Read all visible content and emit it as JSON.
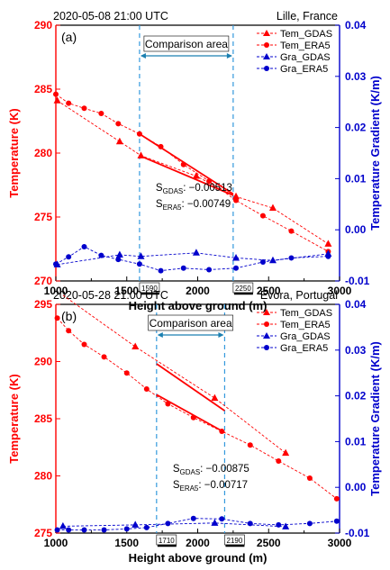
{
  "chart_data": [
    {
      "panel": "(a)",
      "type": "line",
      "timestamp": "2020-05-08  21:00 UTC",
      "location": "Lille, France",
      "xlabel": "Height above ground (m)",
      "ylabel_left": "Temperature (K)",
      "ylabel_right": "Temperature Gradient (K/m)",
      "xlim": [
        1000,
        3000
      ],
      "ylim_left": [
        270,
        290
      ],
      "ylim_right": [
        -0.01,
        0.04
      ],
      "xticks": [
        "1000",
        "1500",
        "2000",
        "2500",
        "3000"
      ],
      "yticks_left": [
        "270",
        "275",
        "280",
        "285",
        "290"
      ],
      "yticks_right": [
        "-0.01",
        "0.00",
        "0.01",
        "0.02",
        "0.03",
        "0.04"
      ],
      "comparison_label": "Comparison area",
      "comparison_range": [
        1590,
        2250
      ],
      "comparison_range_labels": [
        "1590",
        "2250"
      ],
      "slope_texts": [
        "S",
        "GDAS",
        ": −0.00513",
        "S",
        "ERA5",
        ": −0.00749"
      ],
      "legend": [
        "Tem_GDAS",
        "Tem_ERA5",
        "Gra_GDAS",
        "Gra_ERA5"
      ],
      "series": [
        {
          "name": "Tem_GDAS",
          "axis": "left",
          "color": "#ff0000",
          "marker": "triangle",
          "x": [
            1010,
            1450,
            1600,
            1990,
            2270,
            2530,
            2920
          ],
          "y": [
            284.1,
            280.9,
            279.8,
            278.2,
            276.6,
            275.7,
            272.9
          ]
        },
        {
          "name": "Tem_ERA5",
          "axis": "left",
          "color": "#ff0000",
          "marker": "circle",
          "x": [
            1000,
            1090,
            1200,
            1320,
            1440,
            1590,
            1740,
            1900,
            2080,
            2270,
            2460,
            2660,
            2920
          ],
          "y": [
            284.6,
            283.9,
            283.5,
            283.1,
            282.3,
            281.5,
            280.5,
            279.1,
            277.8,
            276.3,
            275.1,
            273.9,
            272.3
          ]
        },
        {
          "name": "Gra_GDAS",
          "axis": "right",
          "color": "#0000cc",
          "marker": "triangle",
          "x": [
            1010,
            1450,
            1600,
            1990,
            2270,
            2530,
            2920
          ],
          "y": [
            -0.0068,
            -0.0049,
            -0.0052,
            -0.0045,
            -0.0055,
            -0.006,
            -0.0047
          ]
        },
        {
          "name": "Gra_ERA5",
          "axis": "right",
          "color": "#0000cc",
          "marker": "circle",
          "x": [
            1000,
            1090,
            1200,
            1320,
            1440,
            1590,
            1740,
            1900,
            2080,
            2270,
            2460,
            2660,
            2920
          ],
          "y": [
            -0.0067,
            -0.0053,
            -0.0033,
            -0.005,
            -0.0058,
            -0.0067,
            -0.008,
            -0.0075,
            -0.0078,
            -0.0075,
            -0.0063,
            -0.0055,
            -0.0052
          ]
        }
      ],
      "fit_lines": [
        {
          "name": "GDAS",
          "x": [
            1590,
            2250
          ],
          "y": [
            279.8,
            276.7
          ]
        },
        {
          "name": "ERA5",
          "x": [
            1590,
            2250
          ],
          "y": [
            281.5,
            276.8
          ]
        }
      ]
    },
    {
      "panel": "(b)",
      "type": "line",
      "timestamp": "2020-05-28  21:00 UTC",
      "location": "Evora, Portugal",
      "xlabel": "Height above ground (m)",
      "ylabel_left": "Temperature (K)",
      "ylabel_right": "Temperature Gradient (K/m)",
      "xlim": [
        1000,
        3000
      ],
      "ylim_left": [
        275,
        295
      ],
      "ylim_right": [
        -0.01,
        0.04
      ],
      "xticks": [
        "1000",
        "1500",
        "2000",
        "2500",
        "3000"
      ],
      "yticks_left": [
        "275",
        "280",
        "285",
        "290",
        "295"
      ],
      "yticks_right": [
        "-0.01",
        "0.00",
        "0.01",
        "0.02",
        "0.03",
        "0.04"
      ],
      "comparison_label": "Comparison area",
      "comparison_range": [
        1710,
        2190
      ],
      "comparison_range_labels": [
        "1710",
        "2190"
      ],
      "slope_texts": [
        "S",
        "GDAS",
        ": −0.00875",
        "S",
        "ERA5",
        ": −0.00717"
      ],
      "legend": [
        "Tem_GDAS",
        "Tem_ERA5",
        "Gra_GDAS",
        "Gra_ERA5"
      ],
      "series": [
        {
          "name": "Tem_GDAS",
          "axis": "left",
          "color": "#ff0000",
          "marker": "triangle",
          "x": [
            1050,
            1560,
            2120,
            2620
          ],
          "y": [
            295.8,
            291.3,
            286.8,
            282.0
          ]
        },
        {
          "name": "Tem_ERA5",
          "axis": "left",
          "color": "#ff0000",
          "marker": "circle",
          "x": [
            1010,
            1090,
            1200,
            1340,
            1500,
            1640,
            1790,
            1970,
            2170,
            2370,
            2570,
            2790,
            2980
          ],
          "y": [
            293.8,
            292.7,
            291.5,
            290.4,
            289.0,
            287.6,
            286.3,
            285.1,
            283.9,
            282.7,
            281.3,
            279.8,
            278.0
          ]
        },
        {
          "name": "Gra_GDAS",
          "axis": "right",
          "color": "#0000cc",
          "marker": "triangle",
          "x": [
            1050,
            1560,
            2120,
            2620
          ],
          "y": [
            -0.0085,
            -0.0082,
            -0.0078,
            -0.0086
          ]
        },
        {
          "name": "Gra_ERA5",
          "axis": "right",
          "color": "#0000cc",
          "marker": "circle",
          "x": [
            1010,
            1090,
            1200,
            1340,
            1500,
            1640,
            1790,
            1970,
            2170,
            2370,
            2570,
            2790,
            2980
          ],
          "y": [
            -0.0093,
            -0.0093,
            -0.0093,
            -0.0093,
            -0.0091,
            -0.0088,
            -0.0079,
            -0.0068,
            -0.0069,
            -0.0079,
            -0.0082,
            -0.0079,
            -0.0074
          ]
        }
      ],
      "fit_lines": [
        {
          "name": "GDAS",
          "x": [
            1710,
            2190
          ],
          "y": [
            289.8,
            285.7
          ]
        },
        {
          "name": "ERA5",
          "x": [
            1710,
            2190
          ],
          "y": [
            287.1,
            283.8
          ]
        }
      ]
    }
  ]
}
